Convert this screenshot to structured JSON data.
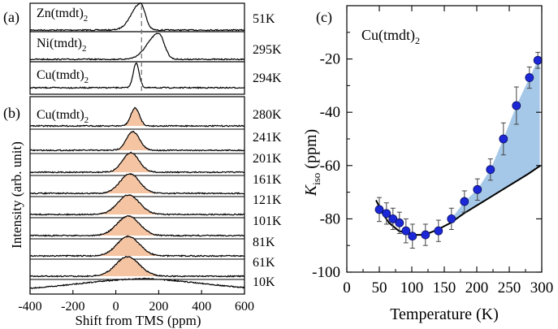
{
  "chart_data": [
    {
      "type": "line",
      "panel": "(a)",
      "traces": [
        {
          "label": "Zn(tmdt)",
          "subscript": "2",
          "temperature": "51K",
          "peak_ppm": 115,
          "width": 22,
          "shape": "asym-left"
        },
        {
          "label": "Ni(tmdt)",
          "subscript": "2",
          "temperature": "295K",
          "peak_ppm": 200,
          "width": 32,
          "shape": "asym-right"
        },
        {
          "label": "Cu(tmdt)",
          "subscript": "2",
          "temperature": "294K",
          "peak_ppm": 95,
          "width": 14,
          "shape": "sym"
        }
      ],
      "reference_line_ppm": 120
    },
    {
      "type": "area",
      "panel": "(b)",
      "label": "Cu(tmdt)",
      "subscript": "2",
      "spectra": [
        {
          "temperature": "280K",
          "peak_ppm": 90,
          "width": 20,
          "filled": true
        },
        {
          "temperature": "241K",
          "peak_ppm": 80,
          "width": 30,
          "filled": true
        },
        {
          "temperature": "201K",
          "peak_ppm": 70,
          "width": 38,
          "filled": true
        },
        {
          "temperature": "161K",
          "peak_ppm": 65,
          "width": 45,
          "filled": true
        },
        {
          "temperature": "121K",
          "peak_ppm": 60,
          "width": 50,
          "filled": true
        },
        {
          "temperature": "101K",
          "peak_ppm": 58,
          "width": 52,
          "filled": true
        },
        {
          "temperature": "81K",
          "peak_ppm": 58,
          "width": 52,
          "filled": true
        },
        {
          "temperature": "61K",
          "peak_ppm": 55,
          "width": 55,
          "filled": true
        },
        {
          "temperature": "10K",
          "peak_ppm": 120,
          "width": 300,
          "filled": false
        }
      ],
      "xlabel": "Shift from TMS (ppm)",
      "ylabel": "Intensity (arb. unit)",
      "xlim": [
        -400,
        600
      ],
      "xticks": [
        -400,
        -200,
        0,
        200,
        400,
        600
      ]
    },
    {
      "type": "scatter",
      "panel": "(c)",
      "title": "Cu(tmdt)",
      "title_subscript": "2",
      "xlabel": "Temperature (K)",
      "ylabel": "K",
      "ylabel_subscript": "iso",
      "ylabel_unit": " (ppm)",
      "xlim": [
        0,
        300
      ],
      "ylim": [
        -100,
        0
      ],
      "xticks": [
        0,
        50,
        100,
        150,
        200,
        250,
        300
      ],
      "yticks": [
        -100,
        -80,
        -60,
        -40,
        -20
      ],
      "points": [
        {
          "x": 50,
          "y": -76.5,
          "err": 4.5
        },
        {
          "x": 61,
          "y": -78,
          "err": 4
        },
        {
          "x": 71,
          "y": -80,
          "err": 4
        },
        {
          "x": 81,
          "y": -81.5,
          "err": 4
        },
        {
          "x": 91,
          "y": -84.5,
          "err": 4.5
        },
        {
          "x": 101,
          "y": -86.5,
          "err": 4.5
        },
        {
          "x": 121,
          "y": -86,
          "err": 4
        },
        {
          "x": 141,
          "y": -84.5,
          "err": 4
        },
        {
          "x": 161,
          "y": -80,
          "err": 4
        },
        {
          "x": 181,
          "y": -73.5,
          "err": 4
        },
        {
          "x": 201,
          "y": -69,
          "err": 4
        },
        {
          "x": 221,
          "y": -61.5,
          "err": 4
        },
        {
          "x": 241,
          "y": -50,
          "err": 6
        },
        {
          "x": 261,
          "y": -37.5,
          "err": 7
        },
        {
          "x": 281,
          "y": -27,
          "err": 4
        },
        {
          "x": 294,
          "y": -20.5,
          "err": 3
        }
      ],
      "fit_line": [
        {
          "x": 45,
          "y": -73
        },
        {
          "x": 55,
          "y": -78
        },
        {
          "x": 65,
          "y": -81.5
        },
        {
          "x": 80,
          "y": -84.5
        },
        {
          "x": 100,
          "y": -86
        },
        {
          "x": 120,
          "y": -86
        },
        {
          "x": 140,
          "y": -84
        },
        {
          "x": 160,
          "y": -81.5
        },
        {
          "x": 180,
          "y": -78
        },
        {
          "x": 200,
          "y": -75
        },
        {
          "x": 220,
          "y": -72
        },
        {
          "x": 240,
          "y": -69
        },
        {
          "x": 260,
          "y": -66
        },
        {
          "x": 280,
          "y": -63
        },
        {
          "x": 298,
          "y": -60
        }
      ],
      "fill_color": "#a5c8e8",
      "marker_color": "#1c28d8"
    }
  ]
}
